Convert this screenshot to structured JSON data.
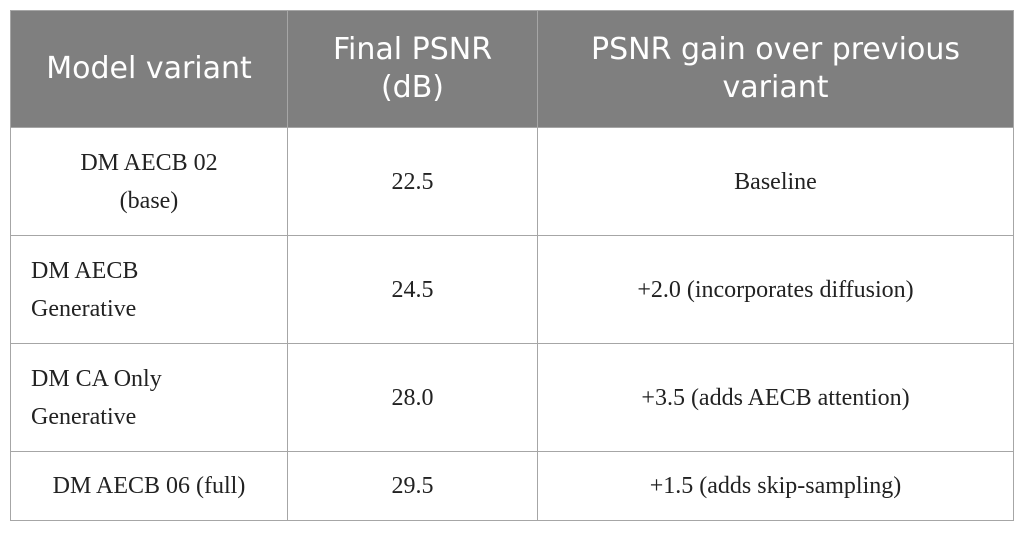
{
  "table": {
    "header": [
      "Model variant",
      "Final PSNR (dB)",
      "PSNR gain over previous variant"
    ],
    "rows": [
      [
        "DM AECB 02 (base)",
        "22.5",
        "Baseline"
      ],
      [
        "DM AECB Generative",
        "24.5",
        "+2.0 (incorporates diffusion)"
      ],
      [
        "DM CA Only Generative",
        "28.0",
        "+3.5 (adds AECB attention)"
      ],
      [
        "DM AECB 06 (full)",
        "29.5",
        "+1.5 (adds skip-sampling)"
      ]
    ]
  }
}
